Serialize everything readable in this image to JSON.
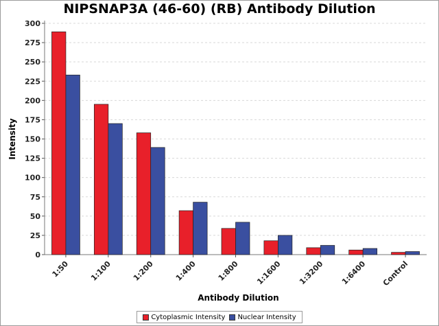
{
  "chart_data": {
    "type": "bar",
    "title": "NIPSNAP3A (46-60) (RB) Antibody Dilution",
    "xlabel": "Antibody Dilution",
    "ylabel": "Intensity",
    "ylim": [
      0,
      300
    ],
    "yticks": [
      0,
      25,
      50,
      75,
      100,
      125,
      150,
      175,
      200,
      225,
      250,
      275,
      300
    ],
    "categories": [
      "1:50",
      "1:100",
      "1:200",
      "1:400",
      "1:800",
      "1:1600",
      "1:3200",
      "1:6400",
      "Control"
    ],
    "series": [
      {
        "name": "Cytoplasmic Intensity",
        "color": "#e8202a",
        "values": [
          289,
          195,
          158,
          57,
          34,
          18,
          9,
          6,
          3
        ]
      },
      {
        "name": "Nuclear Intensity",
        "color": "#3a4fa0",
        "values": [
          233,
          170,
          139,
          68,
          42,
          25,
          12,
          8,
          4
        ]
      }
    ],
    "grid": true,
    "legend_position": "bottom"
  }
}
